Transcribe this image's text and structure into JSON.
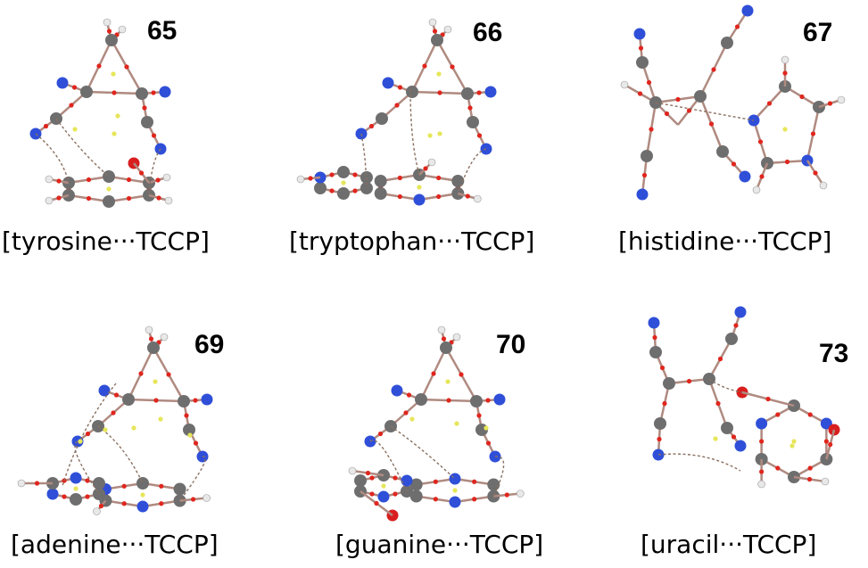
{
  "panels": [
    {
      "id": "65",
      "caption": "[tyrosine···TCCP]"
    },
    {
      "id": "66",
      "caption": "[tryptophan···TCCP]"
    },
    {
      "id": "67",
      "caption": "[histidine···TCCP]"
    },
    {
      "id": "69",
      "caption": "[adenine···TCCP]"
    },
    {
      "id": "70",
      "caption": "[guanine···TCCP]"
    },
    {
      "id": "73",
      "caption": "[uracil···TCCP]"
    }
  ],
  "colors": {
    "carbon": "#6e6e6e",
    "nitrogen": "#2f4fd8",
    "oxygen": "#d81e1e",
    "hydrogen": "#e8e8e8",
    "bond": "#b08a80",
    "bcp": "#e0261e",
    "rcp": "#e6e65a",
    "interaction": "#8a7060"
  }
}
